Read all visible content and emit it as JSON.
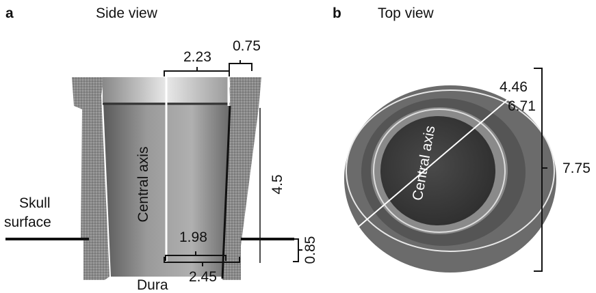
{
  "panels": [
    {
      "letter": "a",
      "title": "Side view",
      "labels": {
        "top_width": "2.23",
        "wall_top": "0.75",
        "height": "4.5",
        "skull_surface": [
          "Skull",
          "surface"
        ],
        "axis": "Central axis",
        "bottom_inner": "1.98",
        "bottom_outer": "2.45",
        "dura": "Dura",
        "depth": "0.85"
      }
    },
    {
      "letter": "b",
      "title": "Top view",
      "labels": {
        "inner": "4.46",
        "middle": "6.71",
        "axis": "Central axis",
        "outer": "7.75"
      }
    }
  ]
}
